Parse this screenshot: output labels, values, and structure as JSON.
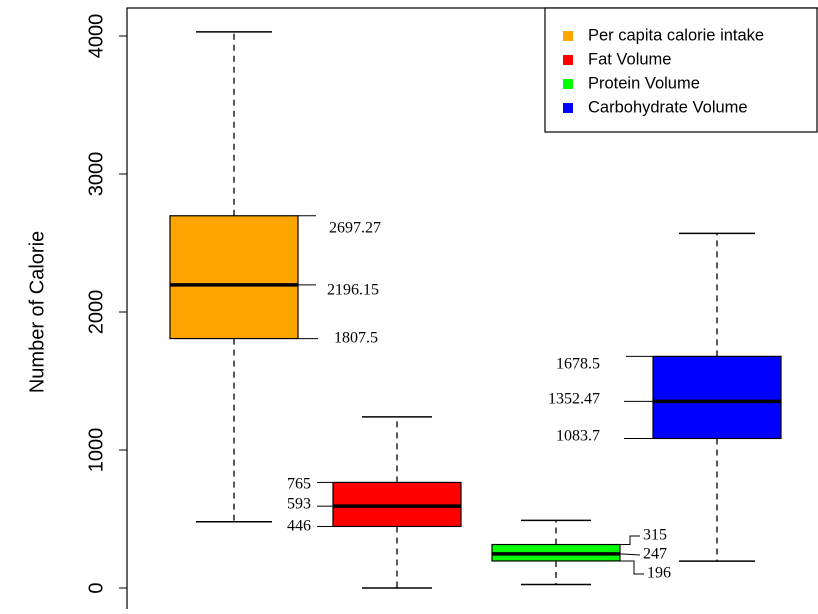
{
  "chart_data": {
    "type": "box",
    "title": "",
    "xlabel": "",
    "ylabel": "Number of Calorie",
    "ylim": [
      -80,
      4200
    ],
    "yticks": [
      0,
      1000,
      2000,
      3000,
      4000
    ],
    "grid": false,
    "legend_position": "top-right",
    "legend": [
      {
        "label": "Per capita calorie intake",
        "color": "#FFA500"
      },
      {
        "label": "Fat Volume",
        "color": "#FF0000"
      },
      {
        "label": "Protein Volume",
        "color": "#00FF00"
      },
      {
        "label": "Carbohydrate Volume",
        "color": "#0000FF"
      }
    ],
    "series": [
      {
        "name": "Per capita calorie intake",
        "color": "#FFA500",
        "min": 480,
        "q1": 1807.5,
        "median": 2196.15,
        "q3": 2697.27,
        "max": 4030,
        "labels": {
          "q1": "1807.5",
          "median": "2196.15",
          "q3": "2697.27"
        }
      },
      {
        "name": "Fat Volume",
        "color": "#FF0000",
        "min": 0,
        "q1": 446,
        "median": 593,
        "q3": 765,
        "max": 1240,
        "labels": {
          "q1": "446",
          "median": "593",
          "q3": "765"
        }
      },
      {
        "name": "Protein Volume",
        "color": "#00FF00",
        "min": 25,
        "q1": 196,
        "median": 247,
        "q3": 315,
        "max": 490,
        "labels": {
          "q1": "196",
          "median": "247",
          "q3": "315"
        }
      },
      {
        "name": "Carbohydrate Volume",
        "color": "#0000FF",
        "min": 195,
        "q1": 1083.7,
        "median": 1352.47,
        "q3": 1678.5,
        "max": 2570,
        "labels": {
          "q1": "1083.7",
          "median": "1352.47",
          "q3": "1678.5"
        }
      }
    ]
  }
}
